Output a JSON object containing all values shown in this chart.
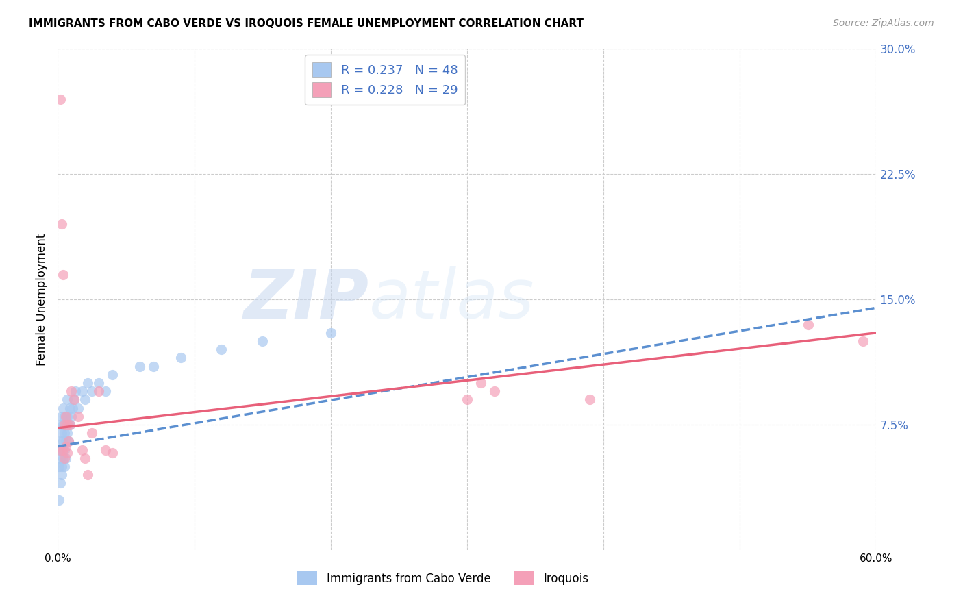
{
  "title": "IMMIGRANTS FROM CABO VERDE VS IROQUOIS FEMALE UNEMPLOYMENT CORRELATION CHART",
  "source": "Source: ZipAtlas.com",
  "ylabel": "Female Unemployment",
  "xlim": [
    0,
    0.6
  ],
  "ylim": [
    0,
    0.3
  ],
  "yticks_right": [
    0.075,
    0.15,
    0.225,
    0.3
  ],
  "ytick_labels_right": [
    "7.5%",
    "15.0%",
    "22.5%",
    "30.0%"
  ],
  "xtick_positions": [
    0.0,
    0.1,
    0.2,
    0.3,
    0.4,
    0.5,
    0.6
  ],
  "xtick_labels": [
    "0.0%",
    "",
    "",
    "",
    "",
    "",
    "60.0%"
  ],
  "legend_label1": "Immigrants from Cabo Verde",
  "legend_label2": "Iroquois",
  "R1": "0.237",
  "N1": "48",
  "R2": "0.228",
  "N2": "29",
  "color1": "#A8C8F0",
  "color2": "#F4A0B8",
  "trend_color1": "#5B8FD0",
  "trend_color2": "#E8607A",
  "watermark_zip": "ZIP",
  "watermark_atlas": "atlas",
  "cabo_verde_x": [
    0.001,
    0.001,
    0.001,
    0.002,
    0.002,
    0.002,
    0.002,
    0.003,
    0.003,
    0.003,
    0.003,
    0.003,
    0.004,
    0.004,
    0.004,
    0.004,
    0.005,
    0.005,
    0.005,
    0.005,
    0.006,
    0.006,
    0.006,
    0.007,
    0.007,
    0.007,
    0.008,
    0.008,
    0.009,
    0.009,
    0.01,
    0.011,
    0.012,
    0.013,
    0.015,
    0.018,
    0.02,
    0.022,
    0.025,
    0.03,
    0.035,
    0.04,
    0.06,
    0.07,
    0.09,
    0.12,
    0.15,
    0.2
  ],
  "cabo_verde_y": [
    0.06,
    0.05,
    0.03,
    0.075,
    0.065,
    0.055,
    0.04,
    0.08,
    0.07,
    0.06,
    0.05,
    0.045,
    0.085,
    0.075,
    0.065,
    0.055,
    0.08,
    0.07,
    0.06,
    0.05,
    0.075,
    0.065,
    0.055,
    0.09,
    0.08,
    0.07,
    0.075,
    0.065,
    0.085,
    0.075,
    0.08,
    0.085,
    0.09,
    0.095,
    0.085,
    0.095,
    0.09,
    0.1,
    0.095,
    0.1,
    0.095,
    0.105,
    0.11,
    0.11,
    0.115,
    0.12,
    0.125,
    0.13
  ],
  "iroquois_x": [
    0.002,
    0.002,
    0.003,
    0.004,
    0.004,
    0.005,
    0.005,
    0.006,
    0.006,
    0.007,
    0.007,
    0.008,
    0.009,
    0.01,
    0.012,
    0.015,
    0.018,
    0.02,
    0.022,
    0.025,
    0.03,
    0.035,
    0.04,
    0.3,
    0.31,
    0.32,
    0.39,
    0.55,
    0.59
  ],
  "iroquois_y": [
    0.27,
    0.06,
    0.195,
    0.165,
    0.06,
    0.075,
    0.055,
    0.08,
    0.062,
    0.075,
    0.058,
    0.065,
    0.075,
    0.095,
    0.09,
    0.08,
    0.06,
    0.055,
    0.045,
    0.07,
    0.095,
    0.06,
    0.058,
    0.09,
    0.1,
    0.095,
    0.09,
    0.135,
    0.125
  ],
  "trend1_x0": 0.0,
  "trend1_y0": 0.062,
  "trend1_x1": 0.6,
  "trend1_y1": 0.145,
  "trend2_x0": 0.0,
  "trend2_y0": 0.073,
  "trend2_x1": 0.6,
  "trend2_y1": 0.13
}
